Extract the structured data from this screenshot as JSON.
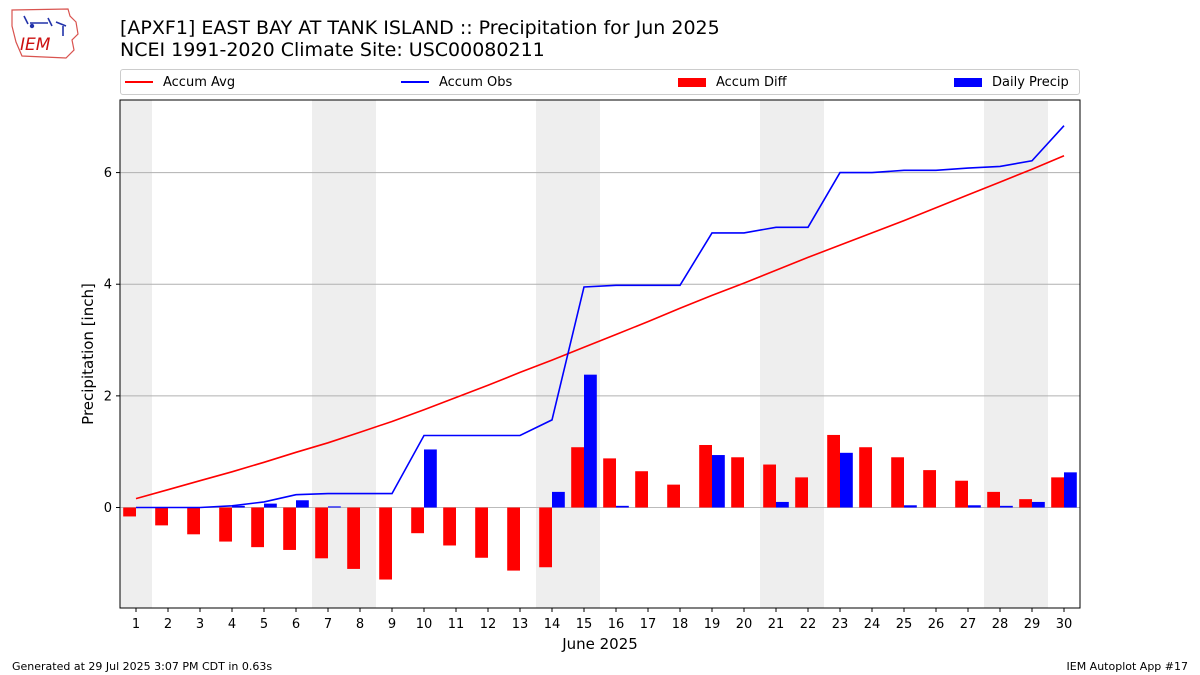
{
  "header": {
    "title_line1": "[APXF1] EAST BAY AT TANK ISLAND :: Precipitation for Jun 2025",
    "title_line2": "NCEI 1991-2020 Climate Site: USC00080211"
  },
  "logo": {
    "text": "IEM"
  },
  "footer": {
    "left": "Generated at 29 Jul 2025 3:07 PM CDT in 0.63s",
    "right": "IEM Autoplot App #17"
  },
  "colors": {
    "accum_avg": "#ff0000",
    "accum_obs": "#0000ff",
    "accum_diff": "#ff0000",
    "daily_precip": "#0000ff",
    "weekend_shade": "#eeeeee",
    "grid": "#b0b0b0"
  },
  "chart_data": {
    "type": "bar",
    "xlabel": "June 2025",
    "ylabel": "Precipitation [inch]",
    "ylim": [
      -1.8,
      7.3
    ],
    "yticks": [
      0,
      2,
      4,
      6
    ],
    "xlim": [
      0.5,
      30.5
    ],
    "grid": "horizontal",
    "legend": "top",
    "weekend_days": [
      1,
      7,
      8,
      14,
      15,
      21,
      22,
      28,
      29
    ],
    "categories": [
      "1",
      "2",
      "3",
      "4",
      "5",
      "6",
      "7",
      "8",
      "9",
      "10",
      "11",
      "12",
      "13",
      "14",
      "15",
      "16",
      "17",
      "18",
      "19",
      "20",
      "21",
      "22",
      "23",
      "24",
      "25",
      "26",
      "27",
      "28",
      "29",
      "30"
    ],
    "series": [
      {
        "name": "Accum Avg",
        "type": "line",
        "values": [
          0.16,
          0.32,
          0.48,
          0.64,
          0.81,
          0.99,
          1.16,
          1.35,
          1.54,
          1.75,
          1.97,
          2.19,
          2.42,
          2.64,
          2.87,
          3.1,
          3.33,
          3.57,
          3.8,
          4.02,
          4.25,
          4.48,
          4.7,
          4.92,
          5.14,
          5.37,
          5.6,
          5.83,
          6.06,
          6.3
        ]
      },
      {
        "name": "Accum Obs",
        "type": "line",
        "values": [
          0.0,
          0.0,
          0.0,
          0.03,
          0.1,
          0.23,
          0.25,
          0.25,
          0.25,
          1.29,
          1.29,
          1.29,
          1.29,
          1.57,
          3.95,
          3.98,
          3.98,
          3.98,
          4.92,
          4.92,
          5.02,
          5.02,
          6.0,
          6.0,
          6.04,
          6.04,
          6.08,
          6.11,
          6.21,
          6.84
        ]
      },
      {
        "name": "Accum Diff",
        "type": "bar",
        "values": [
          -0.16,
          -0.32,
          -0.48,
          -0.61,
          -0.71,
          -0.76,
          -0.91,
          -1.1,
          -1.29,
          -0.46,
          -0.68,
          -0.9,
          -1.13,
          -1.07,
          1.08,
          0.88,
          0.65,
          0.41,
          1.12,
          0.9,
          0.77,
          0.54,
          1.3,
          1.08,
          0.9,
          0.67,
          0.48,
          0.28,
          0.15,
          0.54
        ]
      },
      {
        "name": "Daily Precip",
        "type": "bar",
        "values": [
          0.0,
          0.0,
          0.0,
          0.03,
          0.07,
          0.13,
          0.02,
          0.0,
          0.0,
          1.04,
          0.0,
          0.0,
          0.0,
          0.28,
          2.38,
          0.03,
          0.0,
          0.0,
          0.94,
          0.0,
          0.1,
          0.0,
          0.98,
          0.0,
          0.04,
          0.0,
          0.04,
          0.03,
          0.1,
          0.63
        ]
      }
    ]
  }
}
